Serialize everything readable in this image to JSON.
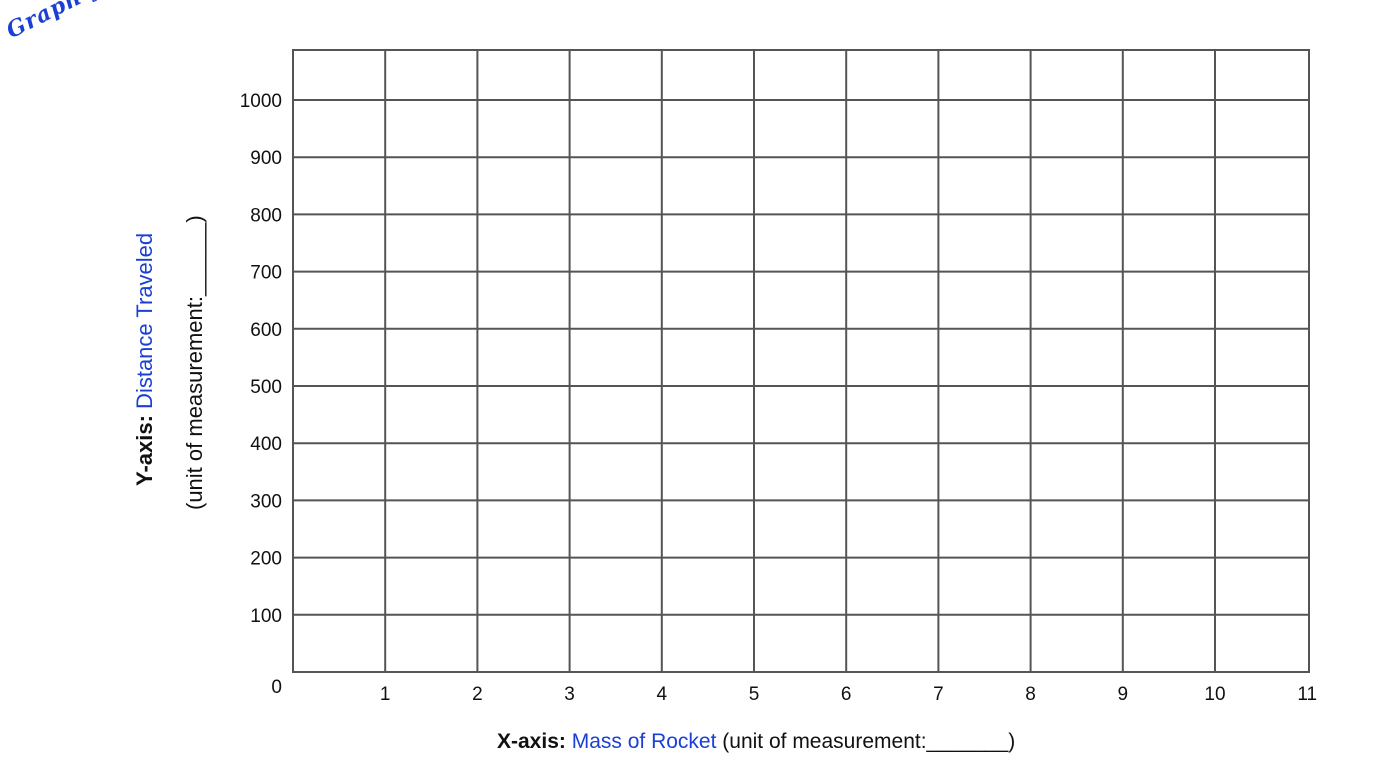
{
  "banner": "Graph your data!",
  "chart_data": {
    "type": "line",
    "x_ticks": [
      "1",
      "2",
      "3",
      "4",
      "5",
      "6",
      "7",
      "8",
      "9",
      "10",
      "11"
    ],
    "y_ticks": [
      "0",
      "100",
      "200",
      "300",
      "400",
      "500",
      "600",
      "700",
      "800",
      "900",
      "1000"
    ],
    "x_range": [
      0,
      11
    ],
    "y_range": [
      0,
      1000
    ],
    "grid": true,
    "series": [],
    "x_axis": {
      "prefix": "X-axis:",
      "name": "Mass of Rocket",
      "unit": "(unit of measurement:_______)"
    },
    "y_axis": {
      "prefix": "Y-axis:",
      "name": "Distance Traveled",
      "unit": "(unit of measurement:______)"
    }
  },
  "colors": {
    "grid": "#555555",
    "accent": "#1a3fd6"
  }
}
